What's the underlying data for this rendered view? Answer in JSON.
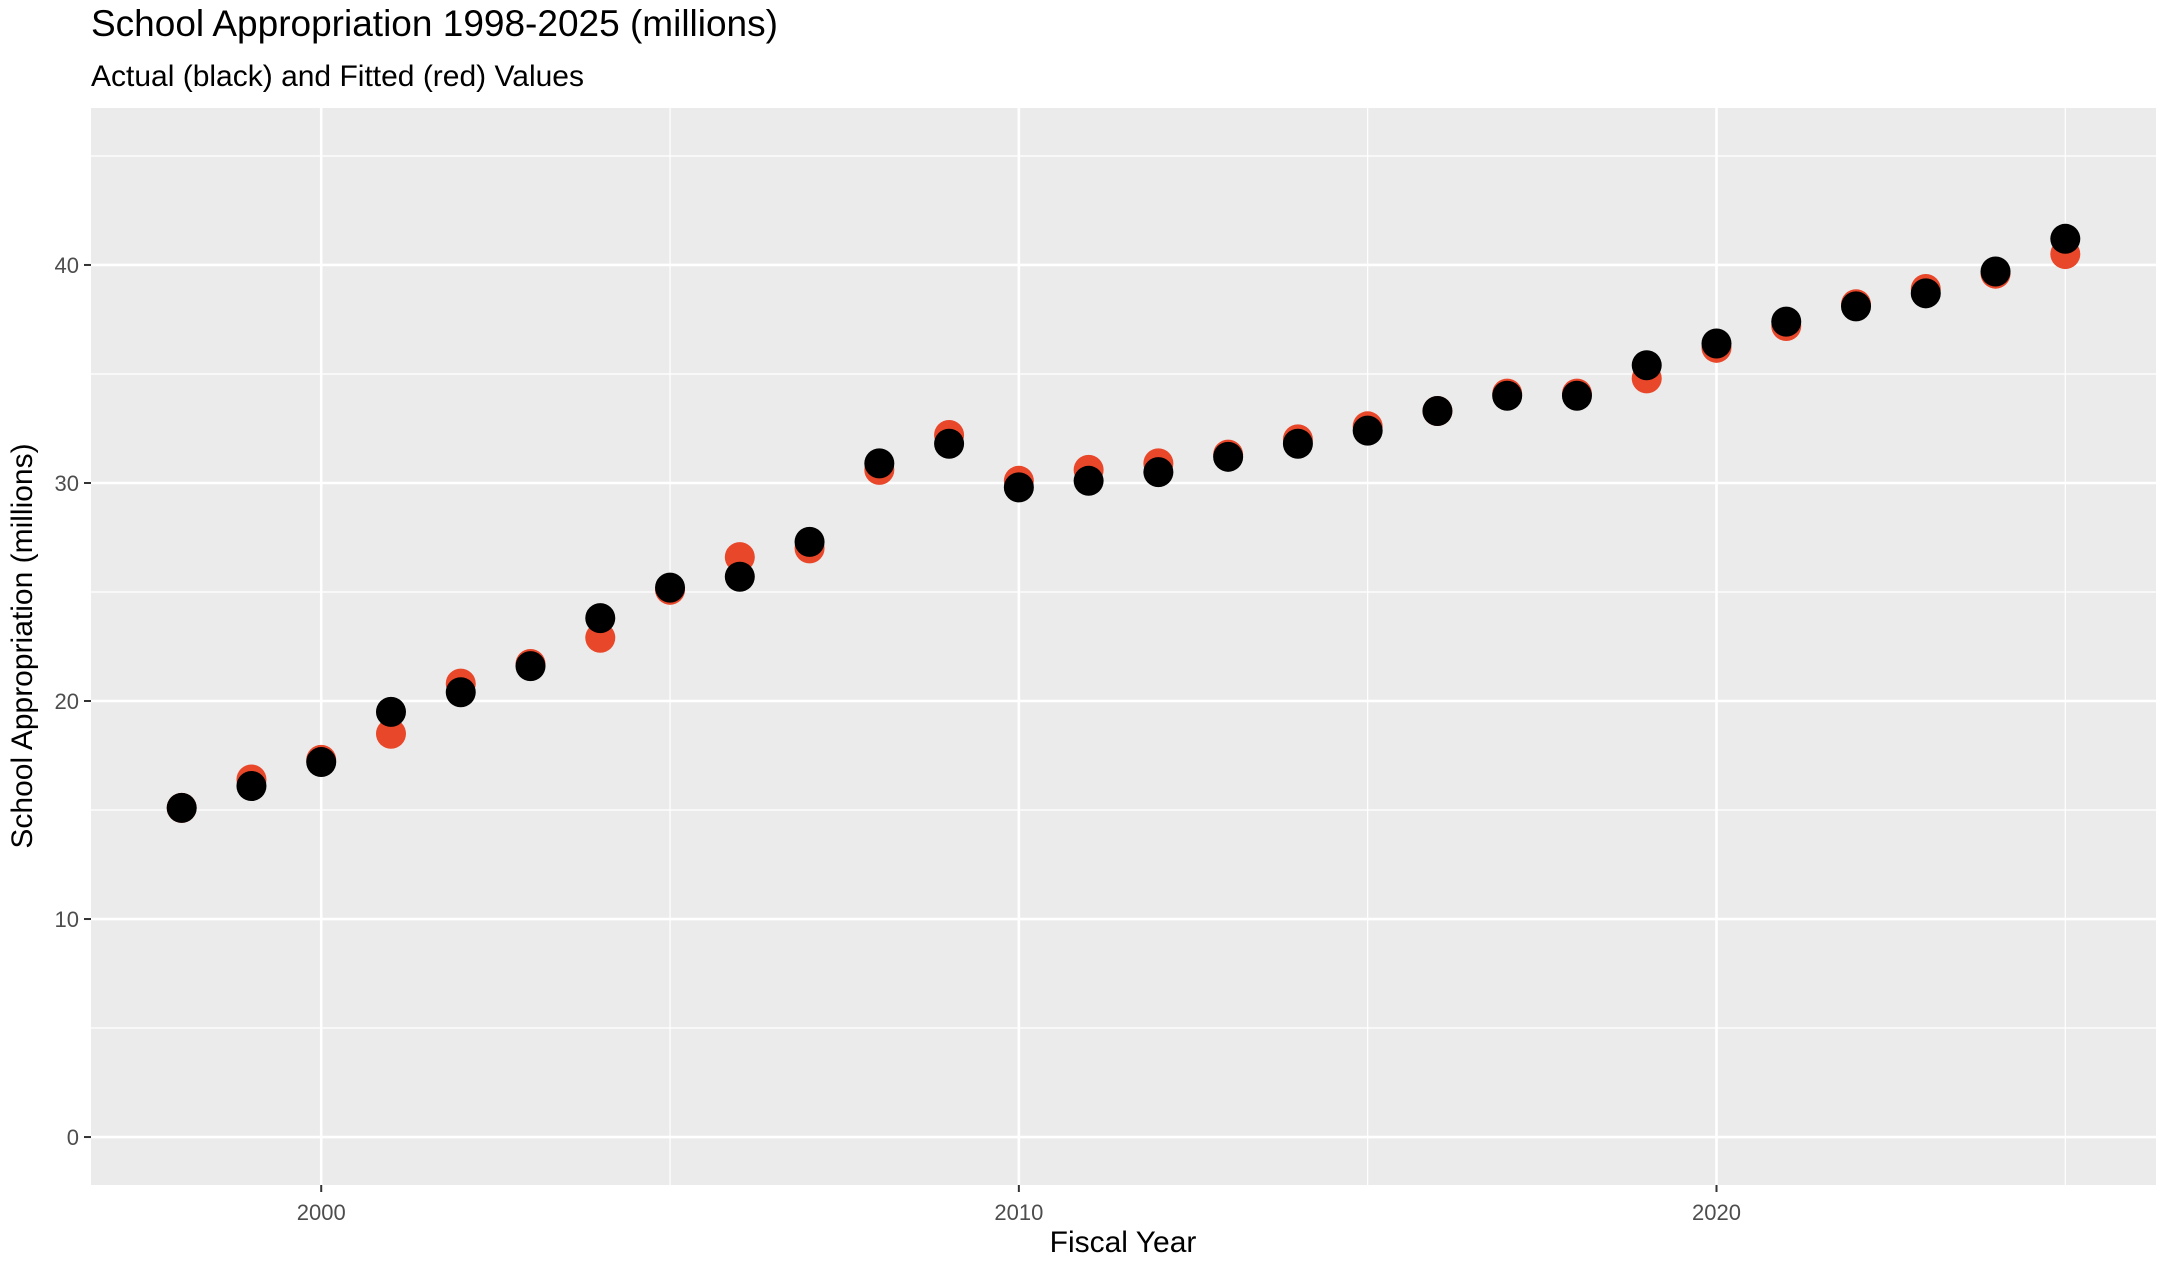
{
  "chart_data": {
    "type": "scatter",
    "title": "School Appropriation 1998-2025 (millions)",
    "subtitle": "Actual (black) and Fitted (red) Values",
    "xlabel": "Fiscal Year",
    "ylabel": "School Appropriation (millions)",
    "xlim": [
      1996.7,
      2026.3
    ],
    "ylim": [
      -2.2,
      47.2
    ],
    "x_ticks": [
      2000,
      2010,
      2020
    ],
    "y_ticks": [
      0,
      10,
      20,
      30,
      40
    ],
    "x_minor_gridlines": [
      1995,
      2005,
      2015,
      2025
    ],
    "y_minor_gridlines": [
      5,
      15,
      25,
      35,
      45
    ],
    "grid": true,
    "legend": "none",
    "x": [
      1998,
      1999,
      2000,
      2001,
      2002,
      2003,
      2004,
      2005,
      2006,
      2007,
      2008,
      2009,
      2010,
      2011,
      2012,
      2013,
      2014,
      2015,
      2016,
      2017,
      2018,
      2019,
      2020,
      2021,
      2022,
      2023,
      2024,
      2025
    ],
    "series": [
      {
        "name": "Fitted",
        "color": "#e8472a",
        "values": [
          15.1,
          16.4,
          17.3,
          18.5,
          20.8,
          21.7,
          22.9,
          25.1,
          26.6,
          27.0,
          30.6,
          32.2,
          30.1,
          30.6,
          30.9,
          31.3,
          32.0,
          32.6,
          33.3,
          34.1,
          34.1,
          34.8,
          36.2,
          37.2,
          38.2,
          38.9,
          39.6,
          40.5
        ]
      },
      {
        "name": "Actual",
        "color": "#000000",
        "values": [
          15.1,
          16.1,
          17.2,
          19.5,
          20.4,
          21.6,
          23.8,
          25.2,
          25.7,
          27.3,
          30.9,
          31.8,
          29.8,
          30.1,
          30.5,
          31.2,
          31.8,
          32.4,
          33.3,
          34.0,
          34.0,
          35.4,
          36.4,
          37.4,
          38.1,
          38.7,
          39.7,
          41.2
        ]
      }
    ]
  },
  "style": {
    "panel_background": "#ebebeb",
    "grid_color": "#ffffff",
    "tick_color": "#333333"
  }
}
